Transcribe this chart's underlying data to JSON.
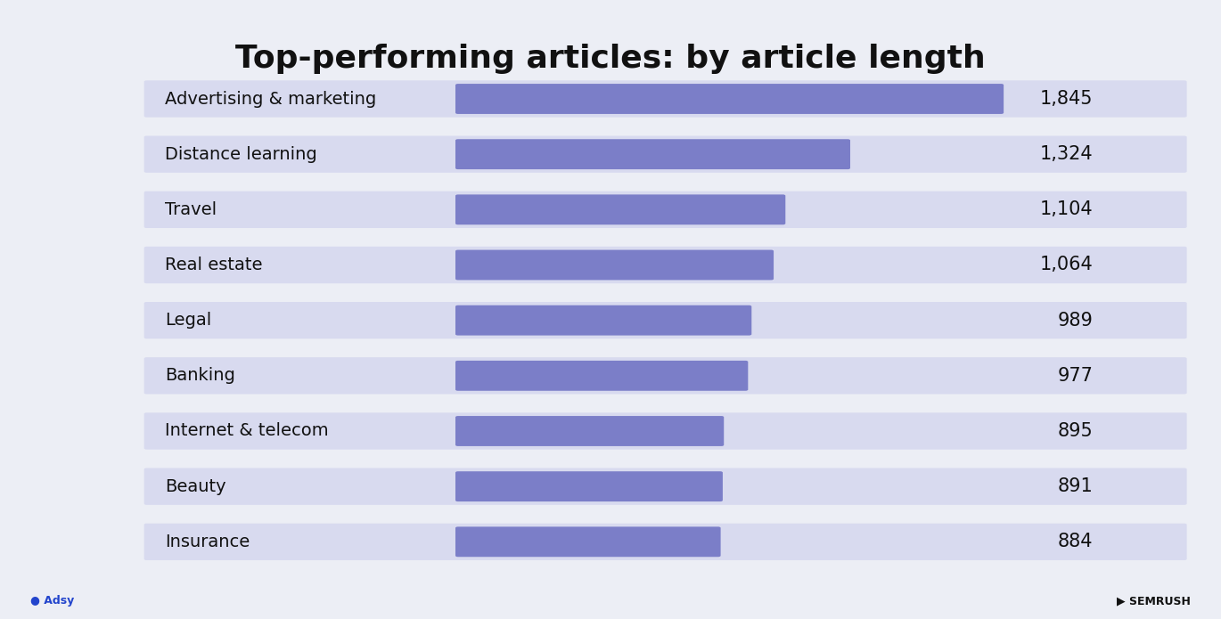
{
  "title": "Top-performing articles: by article length",
  "title_fontsize": 26,
  "title_fontweight": "bold",
  "categories": [
    "Advertising & marketing",
    "Distance learning",
    "Travel",
    "Real estate",
    "Legal",
    "Banking",
    "Internet & telecom",
    "Beauty",
    "Insurance"
  ],
  "values": [
    1845,
    1324,
    1104,
    1064,
    989,
    977,
    895,
    891,
    884
  ],
  "value_labels": [
    "1,845",
    "1,324",
    "1,104",
    "1,064",
    "989",
    "977",
    "895",
    "891",
    "884"
  ],
  "max_value": 1845,
  "bar_color": "#7B7EC8",
  "bar_bg_color": "#D8DAEF",
  "background_color": "#ECEEF5",
  "text_color": "#111111",
  "label_fontsize": 14,
  "value_fontsize": 15
}
